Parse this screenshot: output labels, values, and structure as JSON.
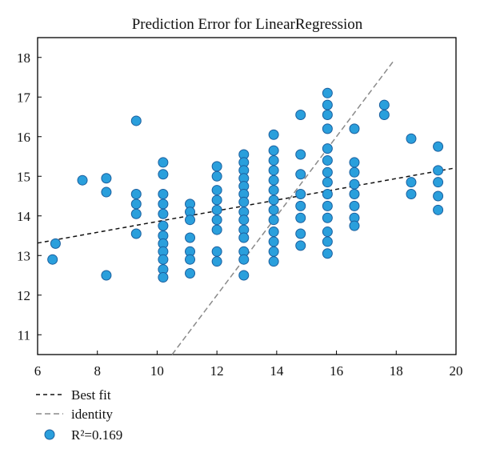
{
  "chart_data": {
    "type": "scatter",
    "title": "Prediction Error for LinearRegression",
    "xlabel": "",
    "ylabel": "",
    "xlim": [
      6,
      20
    ],
    "ylim": [
      10.5,
      18.5
    ],
    "xticks": [
      6,
      8,
      10,
      12,
      14,
      16,
      18,
      20
    ],
    "yticks": [
      11,
      12,
      13,
      14,
      15,
      16,
      17,
      18
    ],
    "grid": false,
    "legend_position": "bottom-left",
    "colors": {
      "points_fill": "#2a9fdc",
      "points_edge": "#1b5f9e",
      "best_fit": "#111111",
      "identity": "#8a8a8a",
      "axes": "#000000"
    },
    "legend": [
      {
        "label": "Best fit",
        "kind": "line-dashed-black"
      },
      {
        "label": "identity",
        "kind": "line-dashed-gray"
      }
    ],
    "r2_label": "R²=0.169",
    "best_fit": {
      "slope": 0.1357,
      "intercept": 12.5,
      "x_range": [
        6,
        20
      ]
    },
    "identity": {
      "x_range": [
        10.5,
        17.9
      ]
    },
    "points": [
      {
        "x": 6.6,
        "y": 13.3
      },
      {
        "x": 6.5,
        "y": 12.9
      },
      {
        "x": 7.5,
        "y": 14.9
      },
      {
        "x": 8.3,
        "y": 14.95
      },
      {
        "x": 8.3,
        "y": 14.6
      },
      {
        "x": 8.3,
        "y": 12.5
      },
      {
        "x": 9.3,
        "y": 16.4
      },
      {
        "x": 9.3,
        "y": 14.55
      },
      {
        "x": 9.3,
        "y": 14.3
      },
      {
        "x": 9.3,
        "y": 14.05
      },
      {
        "x": 9.3,
        "y": 13.55
      },
      {
        "x": 10.2,
        "y": 15.35
      },
      {
        "x": 10.2,
        "y": 15.05
      },
      {
        "x": 10.2,
        "y": 14.55
      },
      {
        "x": 10.2,
        "y": 14.3
      },
      {
        "x": 10.2,
        "y": 14.05
      },
      {
        "x": 10.2,
        "y": 13.75
      },
      {
        "x": 10.2,
        "y": 13.5
      },
      {
        "x": 10.2,
        "y": 13.3
      },
      {
        "x": 10.2,
        "y": 13.1
      },
      {
        "x": 10.2,
        "y": 12.9
      },
      {
        "x": 10.2,
        "y": 12.65
      },
      {
        "x": 10.2,
        "y": 12.45
      },
      {
        "x": 11.1,
        "y": 14.3
      },
      {
        "x": 11.1,
        "y": 14.1
      },
      {
        "x": 11.1,
        "y": 13.9
      },
      {
        "x": 11.1,
        "y": 13.45
      },
      {
        "x": 11.1,
        "y": 13.1
      },
      {
        "x": 11.1,
        "y": 12.9
      },
      {
        "x": 11.1,
        "y": 12.55
      },
      {
        "x": 12.0,
        "y": 15.25
      },
      {
        "x": 12.0,
        "y": 15.0
      },
      {
        "x": 12.0,
        "y": 14.65
      },
      {
        "x": 12.0,
        "y": 14.4
      },
      {
        "x": 12.0,
        "y": 14.15
      },
      {
        "x": 12.0,
        "y": 13.9
      },
      {
        "x": 12.0,
        "y": 13.65
      },
      {
        "x": 12.0,
        "y": 13.1
      },
      {
        "x": 12.0,
        "y": 12.85
      },
      {
        "x": 12.9,
        "y": 15.55
      },
      {
        "x": 12.9,
        "y": 15.35
      },
      {
        "x": 12.9,
        "y": 15.15
      },
      {
        "x": 12.9,
        "y": 14.95
      },
      {
        "x": 12.9,
        "y": 14.75
      },
      {
        "x": 12.9,
        "y": 14.55
      },
      {
        "x": 12.9,
        "y": 14.35
      },
      {
        "x": 12.9,
        "y": 14.1
      },
      {
        "x": 12.9,
        "y": 13.9
      },
      {
        "x": 12.9,
        "y": 13.65
      },
      {
        "x": 12.9,
        "y": 13.45
      },
      {
        "x": 12.9,
        "y": 13.1
      },
      {
        "x": 12.9,
        "y": 12.9
      },
      {
        "x": 12.9,
        "y": 12.5
      },
      {
        "x": 13.9,
        "y": 16.05
      },
      {
        "x": 13.9,
        "y": 15.65
      },
      {
        "x": 13.9,
        "y": 15.4
      },
      {
        "x": 13.9,
        "y": 15.15
      },
      {
        "x": 13.9,
        "y": 14.9
      },
      {
        "x": 13.9,
        "y": 14.65
      },
      {
        "x": 13.9,
        "y": 14.4
      },
      {
        "x": 13.9,
        "y": 14.15
      },
      {
        "x": 13.9,
        "y": 13.9
      },
      {
        "x": 13.9,
        "y": 13.6
      },
      {
        "x": 13.9,
        "y": 13.35
      },
      {
        "x": 13.9,
        "y": 13.1
      },
      {
        "x": 13.9,
        "y": 12.85
      },
      {
        "x": 14.8,
        "y": 16.55
      },
      {
        "x": 14.8,
        "y": 15.55
      },
      {
        "x": 14.8,
        "y": 15.05
      },
      {
        "x": 14.8,
        "y": 14.55
      },
      {
        "x": 14.8,
        "y": 14.25
      },
      {
        "x": 14.8,
        "y": 13.95
      },
      {
        "x": 14.8,
        "y": 13.55
      },
      {
        "x": 14.8,
        "y": 13.25
      },
      {
        "x": 15.7,
        "y": 17.1
      },
      {
        "x": 15.7,
        "y": 16.8
      },
      {
        "x": 15.7,
        "y": 16.55
      },
      {
        "x": 15.7,
        "y": 16.2
      },
      {
        "x": 15.7,
        "y": 15.7
      },
      {
        "x": 15.7,
        "y": 15.4
      },
      {
        "x": 15.7,
        "y": 15.1
      },
      {
        "x": 15.7,
        "y": 14.85
      },
      {
        "x": 15.7,
        "y": 14.55
      },
      {
        "x": 15.7,
        "y": 14.25
      },
      {
        "x": 15.7,
        "y": 13.95
      },
      {
        "x": 15.7,
        "y": 13.6
      },
      {
        "x": 15.7,
        "y": 13.35
      },
      {
        "x": 15.7,
        "y": 13.05
      },
      {
        "x": 16.6,
        "y": 16.2
      },
      {
        "x": 16.6,
        "y": 15.35
      },
      {
        "x": 16.6,
        "y": 15.1
      },
      {
        "x": 16.6,
        "y": 14.8
      },
      {
        "x": 16.6,
        "y": 14.55
      },
      {
        "x": 16.6,
        "y": 14.25
      },
      {
        "x": 16.6,
        "y": 13.95
      },
      {
        "x": 16.6,
        "y": 13.75
      },
      {
        "x": 17.6,
        "y": 16.8
      },
      {
        "x": 17.6,
        "y": 16.55
      },
      {
        "x": 18.5,
        "y": 15.95
      },
      {
        "x": 18.5,
        "y": 14.85
      },
      {
        "x": 18.5,
        "y": 14.55
      },
      {
        "x": 19.4,
        "y": 15.75
      },
      {
        "x": 19.4,
        "y": 15.15
      },
      {
        "x": 19.4,
        "y": 14.85
      },
      {
        "x": 19.4,
        "y": 14.5
      },
      {
        "x": 19.4,
        "y": 14.15
      }
    ]
  }
}
